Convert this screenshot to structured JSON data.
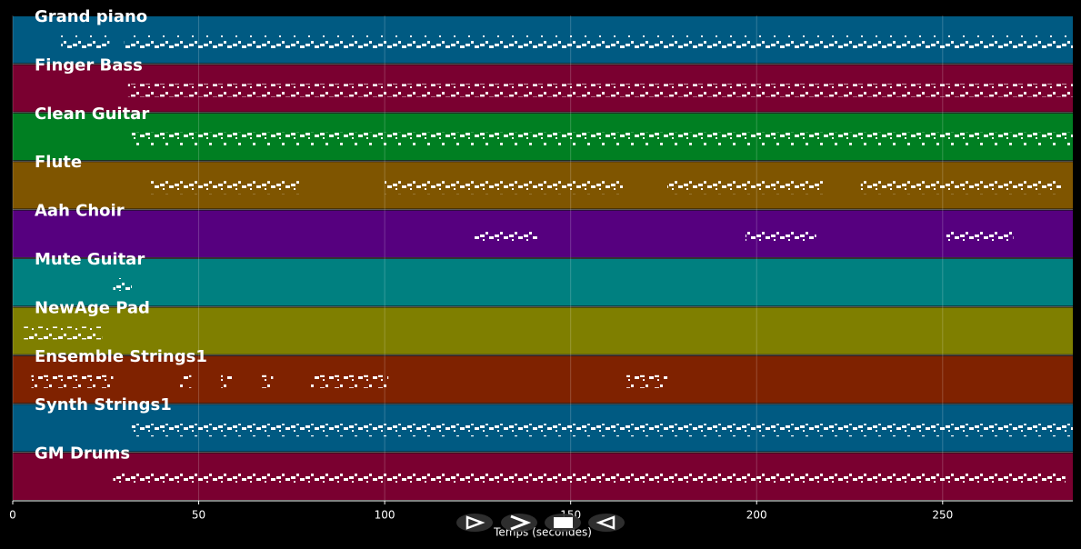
{
  "chart_data": {
    "type": "timeline",
    "xlabel": "Temps (secondes)",
    "xlim": [
      0,
      285
    ],
    "xticks": [
      0,
      50,
      100,
      150,
      200,
      250
    ],
    "grid": true,
    "tracks": [
      {
        "name": "Grand piano",
        "color": "#005a82",
        "spans": [
          [
            13,
            26
          ],
          [
            30,
            285
          ]
        ]
      },
      {
        "name": "Finger Bass",
        "color": "#7a0030",
        "spans": [
          [
            31,
            285
          ]
        ]
      },
      {
        "name": "Clean Guitar",
        "color": "#007f22",
        "spans": [
          [
            32,
            285
          ]
        ]
      },
      {
        "name": "Flute",
        "color": "#7f5500",
        "spans": [
          [
            37,
            77
          ],
          [
            100,
            164
          ],
          [
            176,
            218
          ],
          [
            228,
            282
          ]
        ]
      },
      {
        "name": "Aah Choir",
        "color": "#56007f",
        "spans": [
          [
            124,
            141
          ],
          [
            197,
            216
          ],
          [
            251,
            269
          ]
        ]
      },
      {
        "name": "Mute Guitar",
        "color": "#008080",
        "spans": [
          [
            27,
            32
          ]
        ]
      },
      {
        "name": "NewAge Pad",
        "color": "#7f7f00",
        "spans": [
          [
            3,
            24
          ]
        ]
      },
      {
        "name": "Ensemble Strings1",
        "color": "#7f2200",
        "spans": [
          [
            5,
            27
          ],
          [
            45,
            48
          ],
          [
            56,
            59
          ],
          [
            67,
            70
          ],
          [
            80,
            101
          ],
          [
            165,
            176
          ]
        ]
      },
      {
        "name": "Synth Strings1",
        "color": "#005a82",
        "spans": [
          [
            32,
            285
          ]
        ]
      },
      {
        "name": "GM Drums",
        "color": "#7a0030",
        "spans": [
          [
            27,
            283
          ]
        ]
      }
    ]
  }
}
